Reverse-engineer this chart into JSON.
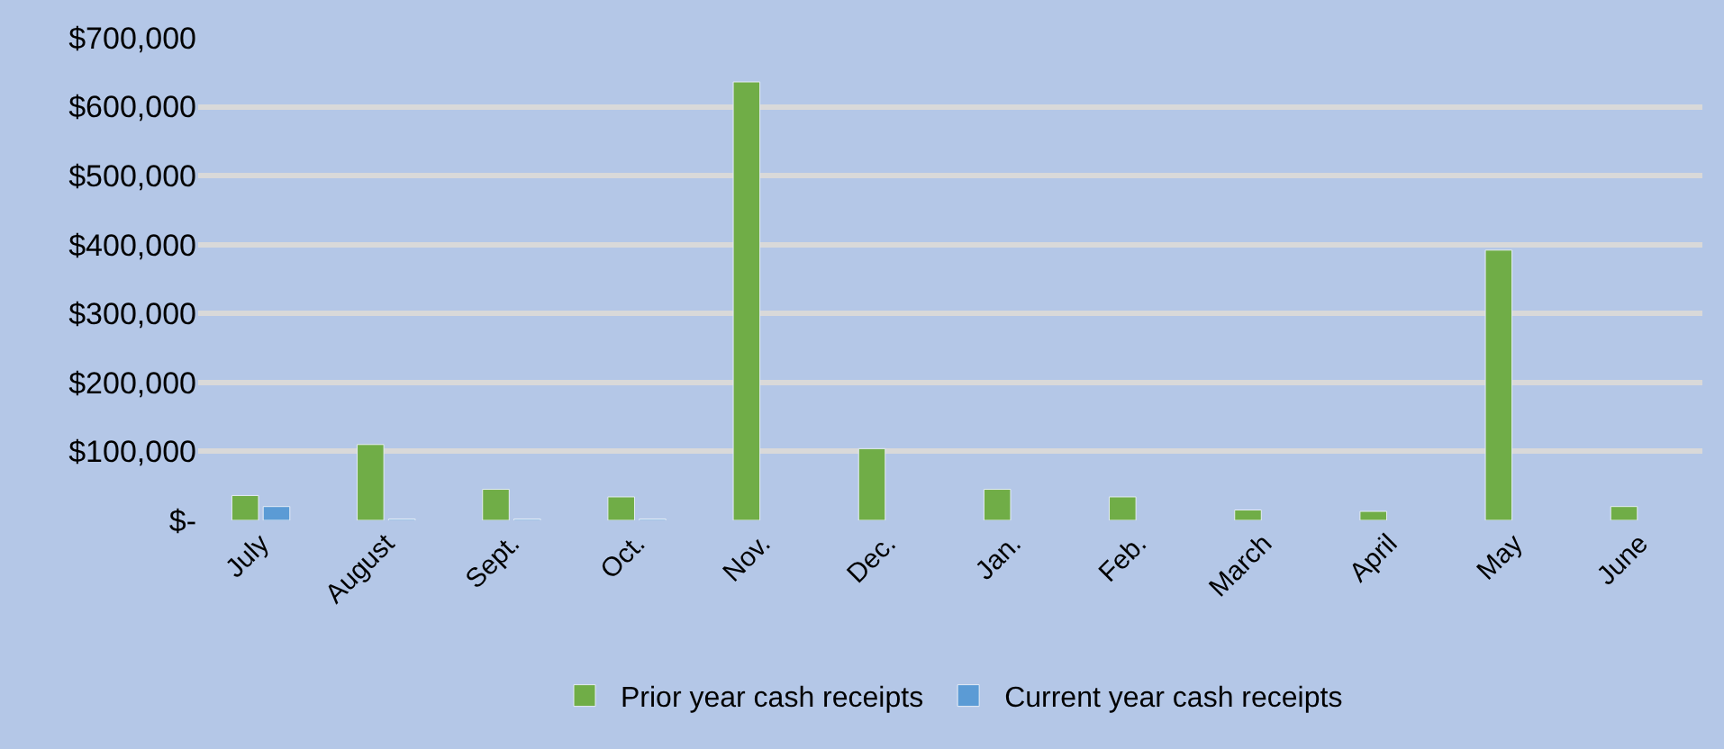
{
  "chart_data": {
    "type": "bar",
    "categories": [
      "July",
      "August",
      "Sept.",
      "Oct.",
      "Nov.",
      "Dec.",
      "Jan.",
      "Feb.",
      "March",
      "April",
      "May",
      "June"
    ],
    "series": [
      {
        "name": "Prior year cash receipts",
        "color": "#70ad47",
        "values": [
          36000,
          110000,
          45000,
          34000,
          636000,
          104000,
          45000,
          34000,
          15000,
          13000,
          392000,
          20000
        ]
      },
      {
        "name": "Current year cash receipts",
        "color": "#5b9bd5",
        "values": [
          20000,
          2000,
          2000,
          2000,
          null,
          null,
          null,
          null,
          null,
          null,
          null,
          null
        ]
      }
    ],
    "ylim": [
      0,
      700000
    ],
    "yticks": [
      {
        "value": 0,
        "label": "$-"
      },
      {
        "value": 100000,
        "label": "$100,000"
      },
      {
        "value": 200000,
        "label": "$200,000"
      },
      {
        "value": 300000,
        "label": "$300,000"
      },
      {
        "value": 400000,
        "label": "$400,000"
      },
      {
        "value": 500000,
        "label": "$500,000"
      },
      {
        "value": 600000,
        "label": "$600,000"
      },
      {
        "value": 700000,
        "label": "$700,000"
      }
    ],
    "grid": "y",
    "legend": "bottom"
  }
}
